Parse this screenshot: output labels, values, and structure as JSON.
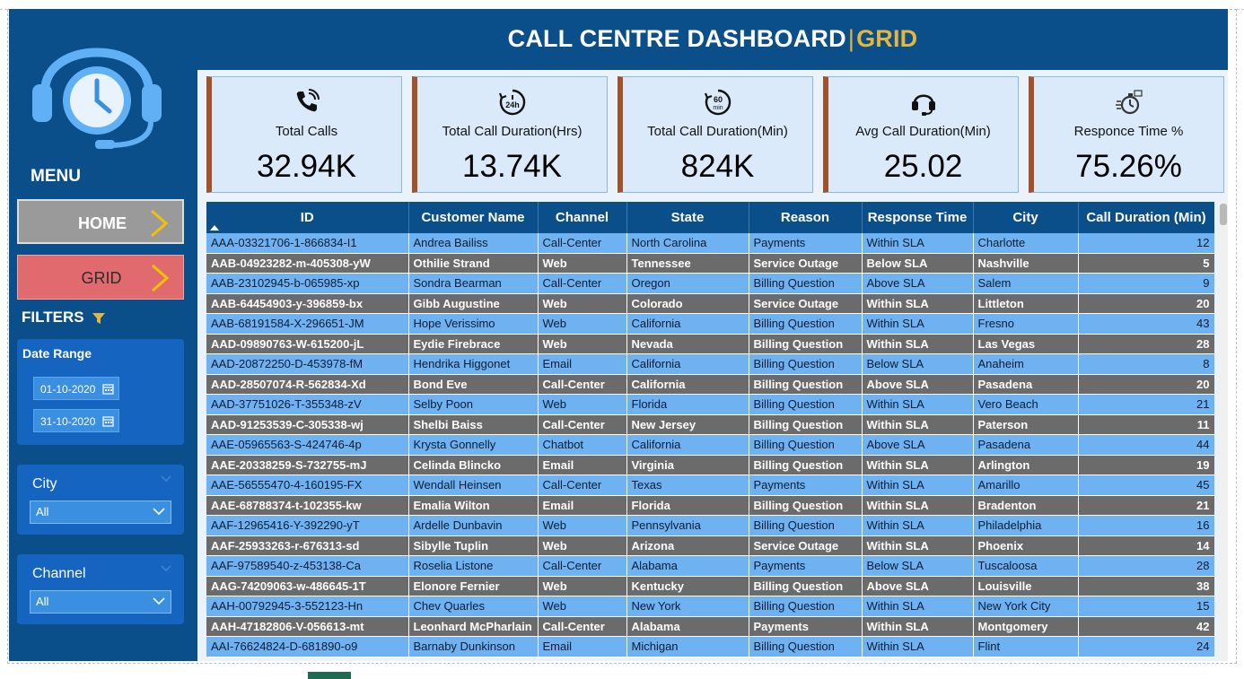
{
  "header": {
    "title": "CALL CENTRE DASHBOARD",
    "separator": "|",
    "accent": "GRID"
  },
  "colors": {
    "navy": "#0b4f8a",
    "accent_gold": "#e6b53c",
    "kpi_border": "#a0522d",
    "row_light": "#6fb2f2",
    "row_dark": "#6b6b6b"
  },
  "sidebar": {
    "logo_icon": "headset-clock-icon",
    "menu_label": "MENU",
    "nav": [
      {
        "label": "HOME",
        "icon": "chevron-right-icon"
      },
      {
        "label": "GRID",
        "icon": "chevron-right-icon"
      }
    ],
    "filters_label": "FILTERS",
    "filters_icon": "funnel-icon",
    "date_range": {
      "title": "Date Range",
      "start": "01-10-2020",
      "end": "31-10-2020",
      "icon": "calendar-icon"
    },
    "city": {
      "title": "City",
      "value": "All"
    },
    "channel": {
      "title": "Channel",
      "value": "All"
    }
  },
  "kpis": [
    {
      "label": "Total Calls",
      "value": "32.94K",
      "icon": "phone-ringing-icon"
    },
    {
      "label": "Total Call Duration(Hrs)",
      "value": "13.74K",
      "icon": "24h-clock-icon"
    },
    {
      "label": "Total Call Duration(Min)",
      "value": "824K",
      "icon": "60min-timer-icon"
    },
    {
      "label": "Avg Call Duration(Min)",
      "value": "25.02",
      "icon": "headset-icon"
    },
    {
      "label": "Responce Time %",
      "value": "75.26%",
      "icon": "stopwatch-icon"
    }
  ],
  "table": {
    "columns": [
      "ID",
      "Customer Name",
      "Channel",
      "State",
      "Reason",
      "Response Time",
      "City",
      "Call Duration (Min)"
    ],
    "sorted_column": "ID",
    "rows": [
      [
        "AAA-03321706-1-866834-I1",
        "Andrea Bailiss",
        "Call-Center",
        "North Carolina",
        "Payments",
        "Within SLA",
        "Charlotte",
        "12"
      ],
      [
        "AAB-04923282-m-405308-yW",
        "Othilie Strand",
        "Web",
        "Tennessee",
        "Service Outage",
        "Below SLA",
        "Nashville",
        "5"
      ],
      [
        "AAB-23102945-b-065985-xp",
        "Sondra Bearman",
        "Call-Center",
        "Oregon",
        "Billing Question",
        "Above SLA",
        "Salem",
        "9"
      ],
      [
        "AAB-64454903-y-396859-bx",
        "Gibb Augustine",
        "Web",
        "Colorado",
        "Service Outage",
        "Within SLA",
        "Littleton",
        "20"
      ],
      [
        "AAB-68191584-X-296651-JM",
        "Hope Verissimo",
        "Web",
        "California",
        "Billing Question",
        "Within SLA",
        "Fresno",
        "43"
      ],
      [
        "AAD-09890763-W-615200-jL",
        "Eydie Firebrace",
        "Web",
        "Nevada",
        "Billing Question",
        "Within SLA",
        "Las Vegas",
        "28"
      ],
      [
        "AAD-20872250-D-453978-fM",
        "Hendrika Higgonet",
        "Email",
        "California",
        "Billing Question",
        "Below SLA",
        "Anaheim",
        "8"
      ],
      [
        "AAD-28507074-R-562834-Xd",
        "Bond Eve",
        "Call-Center",
        "California",
        "Billing Question",
        "Above SLA",
        "Pasadena",
        "20"
      ],
      [
        "AAD-37751026-T-355348-zV",
        "Selby Poon",
        "Web",
        "Florida",
        "Billing Question",
        "Within SLA",
        "Vero Beach",
        "21"
      ],
      [
        "AAD-91253539-C-305338-wj",
        "Shelbi Baiss",
        "Call-Center",
        "New Jersey",
        "Billing Question",
        "Within SLA",
        "Paterson",
        "11"
      ],
      [
        "AAE-05965563-S-424746-4p",
        "Krysta Gonnelly",
        "Chatbot",
        "California",
        "Billing Question",
        "Above SLA",
        "Pasadena",
        "44"
      ],
      [
        "AAE-20338259-S-732755-mJ",
        "Celinda Blincko",
        "Email",
        "Virginia",
        "Billing Question",
        "Within SLA",
        "Arlington",
        "19"
      ],
      [
        "AAE-56555470-4-160195-FX",
        "Wendall Heinsen",
        "Call-Center",
        "Texas",
        "Payments",
        "Within SLA",
        "Amarillo",
        "45"
      ],
      [
        "AAE-68788374-t-102355-kw",
        "Emalia Wilton",
        "Email",
        "Florida",
        "Billing Question",
        "Within SLA",
        "Bradenton",
        "21"
      ],
      [
        "AAF-12965416-Y-392290-yT",
        "Ardelle Dunbavin",
        "Web",
        "Pennsylvania",
        "Billing Question",
        "Within SLA",
        "Philadelphia",
        "16"
      ],
      [
        "AAF-25933263-r-676313-sd",
        "Sibylle Tuplin",
        "Web",
        "Arizona",
        "Service Outage",
        "Within SLA",
        "Phoenix",
        "14"
      ],
      [
        "AAF-97589540-z-453138-Ca",
        "Roselia Listone",
        "Call-Center",
        "Alabama",
        "Payments",
        "Below SLA",
        "Tuscaloosa",
        "28"
      ],
      [
        "AAG-74209063-w-486645-1T",
        "Elonore Fernier",
        "Web",
        "Kentucky",
        "Billing Question",
        "Above SLA",
        "Louisville",
        "38"
      ],
      [
        "AAH-00792945-3-552123-Hn",
        "Chev Quarles",
        "Web",
        "New York",
        "Billing Question",
        "Within SLA",
        "New York City",
        "15"
      ],
      [
        "AAH-47182806-V-056613-mt",
        "Leonhard McPharlain",
        "Call-Center",
        "Alabama",
        "Payments",
        "Within SLA",
        "Montgomery",
        "42"
      ],
      [
        "AAI-76624824-D-681890-o9",
        "Barnaby Dunkinson",
        "Email",
        "Michigan",
        "Billing Question",
        "Within SLA",
        "Flint",
        "24"
      ]
    ]
  }
}
